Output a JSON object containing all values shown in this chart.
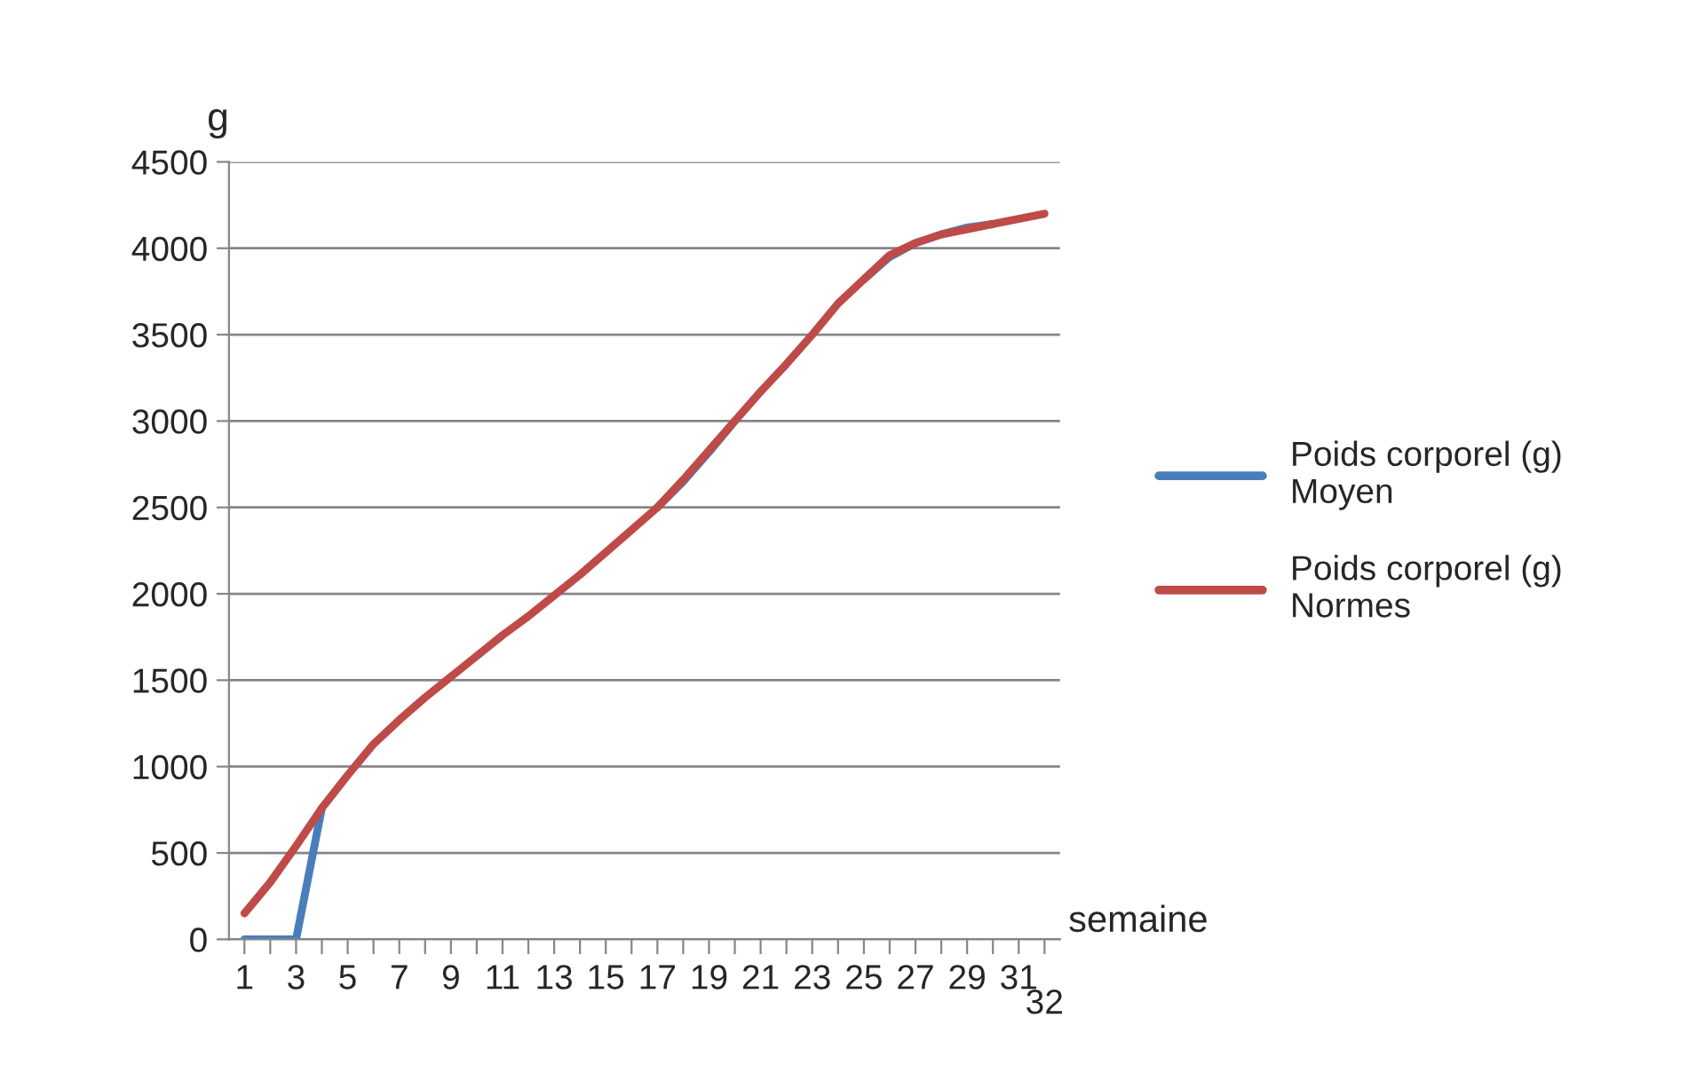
{
  "chart_data": {
    "type": "line",
    "ylabel": "g",
    "xlabel": "semaine",
    "categories": [
      "1",
      null,
      "3",
      null,
      "5",
      null,
      "7",
      null,
      "9",
      null,
      "11",
      null,
      "13",
      null,
      "15",
      null,
      "17",
      null,
      "19",
      null,
      "21",
      null,
      "23",
      null,
      "25",
      null,
      "27",
      null,
      "29",
      null,
      "31",
      "32"
    ],
    "series": [
      {
        "name": "Poids corporel (g) Moyen",
        "color": "#4a7ebb",
        "values": [
          0,
          0,
          0,
          760,
          null,
          null,
          null,
          null,
          null,
          null,
          null,
          null,
          null,
          null,
          null,
          null,
          2500,
          2650,
          2820,
          3000,
          null,
          null,
          null,
          null,
          3820,
          3950,
          4030,
          4080,
          4120,
          4140,
          null,
          null
        ]
      },
      {
        "name": "Poids corporel (g) Normes",
        "color": "#be4b48",
        "values": [
          150,
          330,
          540,
          760,
          950,
          1130,
          1270,
          1400,
          1520,
          1640,
          1760,
          1870,
          1990,
          2110,
          2240,
          2370,
          2500,
          2660,
          2830,
          3000,
          3170,
          3330,
          3500,
          3680,
          3820,
          3960,
          4030,
          4080,
          4110,
          4140,
          4170,
          4200
        ]
      }
    ],
    "ylim": [
      0,
      4500
    ],
    "yticks": [
      0,
      500,
      1000,
      1500,
      2000,
      2500,
      3000,
      3500,
      4000,
      4500
    ],
    "grid": "y",
    "legend": "right",
    "marker": "none",
    "line_style": "solid"
  }
}
